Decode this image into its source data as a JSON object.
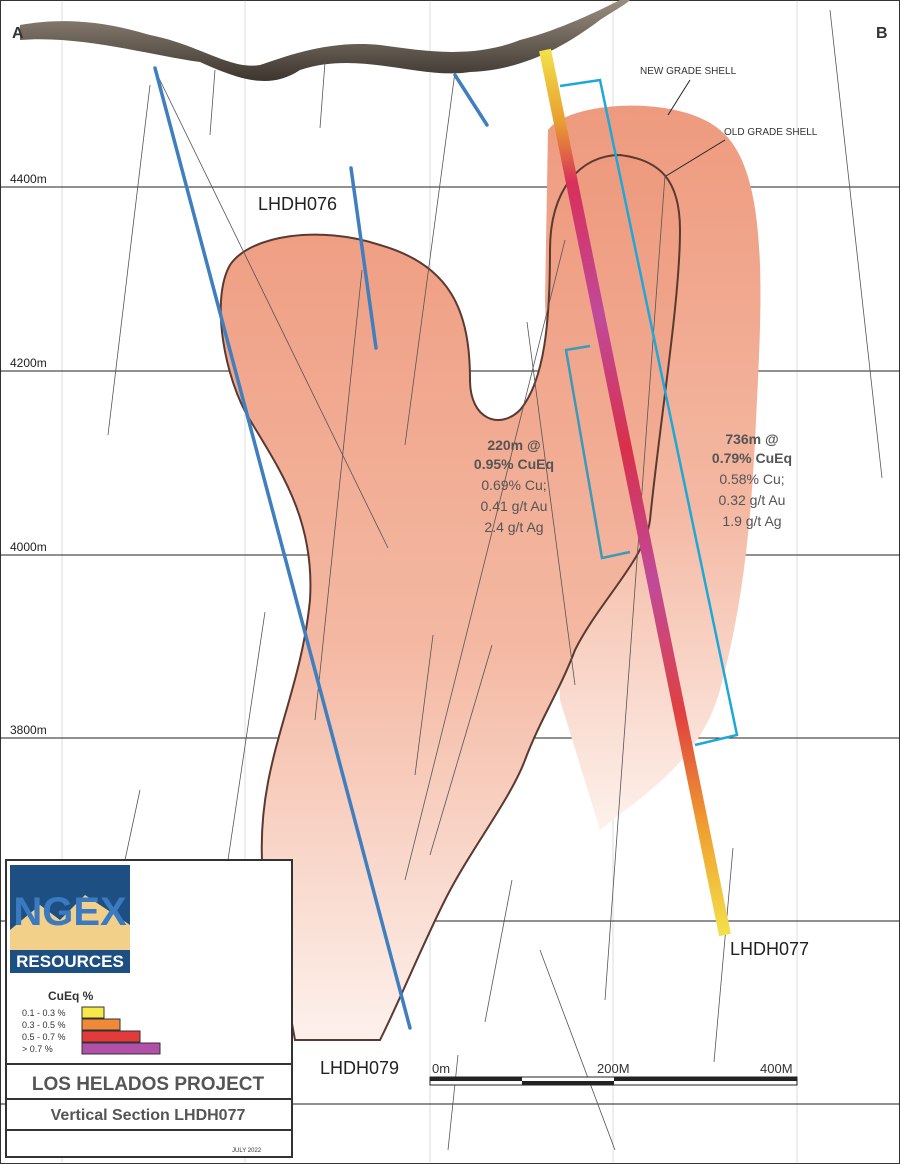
{
  "section_ends": {
    "left": "A",
    "right": "B"
  },
  "elevations": [
    "4400m",
    "4200m",
    "4000m",
    "3800m"
  ],
  "drill_holes": {
    "lhdh076": "LHDH076",
    "lhdh077": "LHDH077",
    "lhdh079": "LHDH079"
  },
  "shell_labels": {
    "new": "NEW GRADE SHELL",
    "old": "OLD GRADE SHELL"
  },
  "intercepts": [
    {
      "headline": [
        "220m @",
        "0.95% CuEq"
      ],
      "details": [
        "0.69% Cu;",
        "0.41 g/t Au",
        "2.4 g/t Ag"
      ]
    },
    {
      "headline": [
        "736m @",
        "0.79% CuEq"
      ],
      "details": [
        "0.58% Cu;",
        "0.32 g/t Au",
        "1.9 g/t Ag"
      ]
    }
  ],
  "logo": {
    "name": "NGEX",
    "subtitle": "RESOURCES"
  },
  "legend": {
    "title": "CuEq %",
    "items": [
      "0.1 - 0.3 %",
      "0.3 - 0.5 %",
      "0.5 - 0.7 %",
      "> 0.7 %"
    ]
  },
  "project_title": "LOS HELADOS PROJECT",
  "section_title": "Vertical Section LHDH077",
  "date": "JULY 2022",
  "scale_bar": [
    "0m",
    "200M",
    "400M"
  ]
}
